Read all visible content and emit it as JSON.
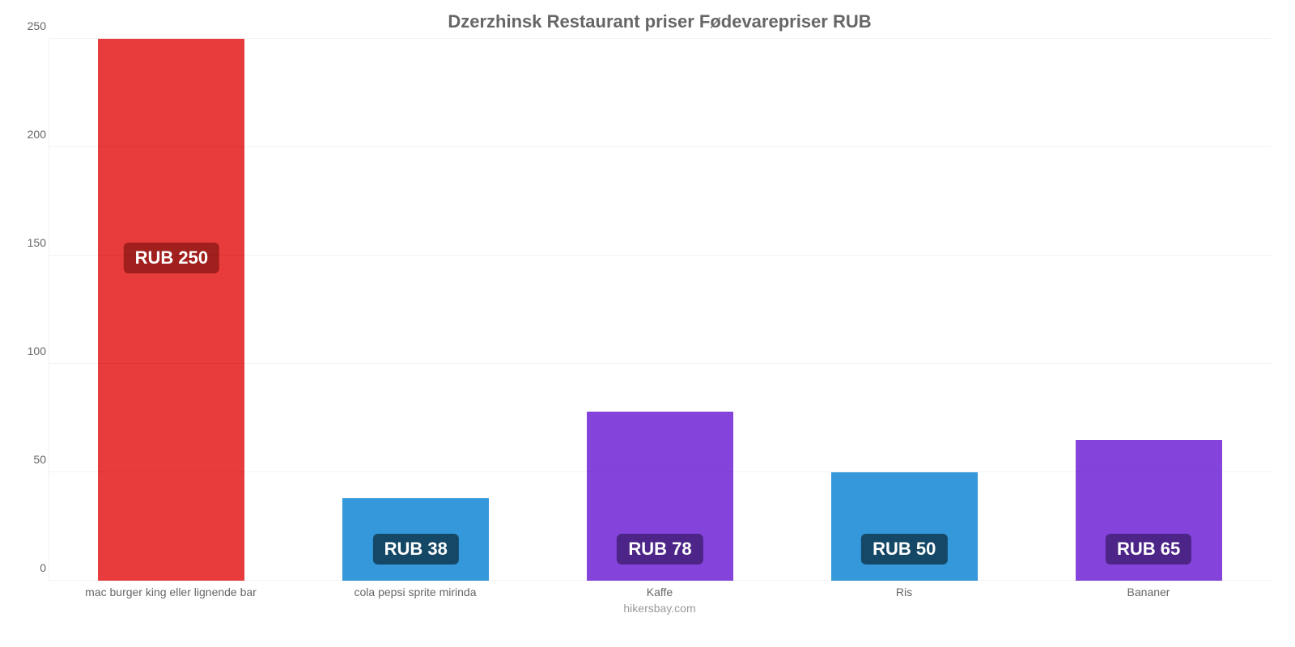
{
  "chart": {
    "type": "bar",
    "title": "Dzerzhinsk Restaurant priser Fødevarepriser RUB",
    "title_fontsize": 22,
    "title_color": "#666666",
    "footer": "hikersbay.com",
    "footer_fontsize": 14,
    "footer_color": "#999999",
    "background_color": "#ffffff",
    "grid_color": "rgba(0,0,0,0.05)",
    "yaxis": {
      "min": 0,
      "max": 250,
      "tick_step": 50,
      "ticks": [
        "0",
        "50",
        "100",
        "150",
        "200",
        "250"
      ],
      "tick_fontsize": 14,
      "tick_color": "#666666"
    },
    "xaxis": {
      "label_fontsize": 14,
      "label_color": "#666666"
    },
    "bar_width_pct": 60,
    "value_label_fontsize": 22,
    "value_label_color": "#ffffff",
    "categories": [
      "mac burger king eller lignende bar",
      "cola pepsi sprite mirinda",
      "Kaffe",
      "Ris",
      "Bananer"
    ],
    "values": [
      250,
      38,
      78,
      50,
      65
    ],
    "value_labels": [
      "RUB 250",
      "RUB 38",
      "RUB 78",
      "RUB 50",
      "RUB 65"
    ],
    "bar_colors": [
      "#e83b3c",
      "#3498db",
      "#8444dc",
      "#3498db",
      "#8444dc"
    ],
    "badge_colors": [
      "#a11f1d",
      "#144866",
      "#4d2588",
      "#144866",
      "#4d2588"
    ],
    "value_badge_offsets": [
      380,
      20,
      20,
      20,
      20
    ]
  }
}
